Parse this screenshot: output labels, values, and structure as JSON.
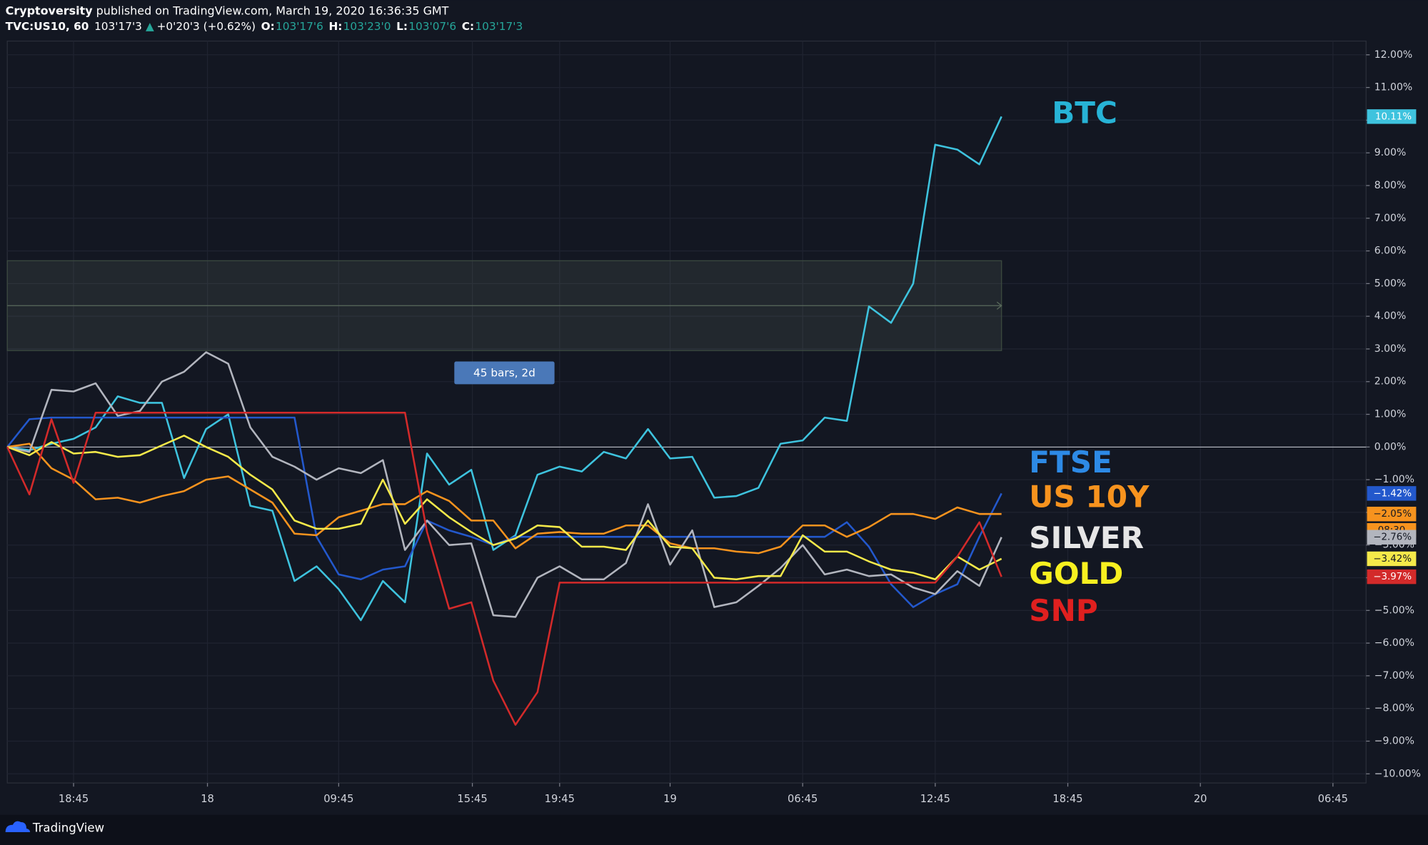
{
  "header": {
    "author": "Cryptoversity",
    "published": "published on TradingView.com, March 19, 2020 16:36:35 GMT",
    "symbol": "TVC:US10, 60",
    "price": "103'17'3",
    "change_arrow": "▲",
    "change": "+0'20'3 (+0.62%)",
    "ohlc": [
      {
        "label": "O:",
        "value": "103'17'6"
      },
      {
        "label": "H:",
        "value": "103'23'0"
      },
      {
        "label": "L:",
        "value": "103'07'6"
      },
      {
        "label": "C:",
        "value": "103'17'3"
      }
    ]
  },
  "footer": {
    "brand": "TradingView"
  },
  "chart_data": {
    "type": "line",
    "x": [
      0,
      1,
      2,
      3,
      4,
      5,
      6,
      7,
      8,
      9,
      10,
      11,
      12,
      13,
      14,
      15,
      16,
      17,
      18,
      19,
      20,
      21,
      22,
      23,
      24,
      25,
      26,
      27,
      28,
      29,
      30,
      31,
      32,
      33,
      34,
      35,
      36,
      37,
      38,
      39,
      40,
      41,
      42,
      43,
      44,
      45
    ],
    "xlim": [
      0,
      61.5
    ],
    "xticks": [
      {
        "value": 3,
        "label": "18:45"
      },
      {
        "value": 9.06,
        "label": "18"
      },
      {
        "value": 15,
        "label": "09:45"
      },
      {
        "value": 21.05,
        "label": "15:45"
      },
      {
        "value": 25,
        "label": "19:45"
      },
      {
        "value": 30,
        "label": "19"
      },
      {
        "value": 36,
        "label": "06:45"
      },
      {
        "value": 42,
        "label": "12:45"
      },
      {
        "value": 48,
        "label": "18:45"
      },
      {
        "value": 54,
        "label": "20"
      },
      {
        "value": 60,
        "label": "06:45"
      }
    ],
    "ylim": [
      -10.28,
      12.42
    ],
    "yticks": [
      {
        "value": 12,
        "label": "12.00%"
      },
      {
        "value": 11,
        "label": "11.00%"
      },
      {
        "value": 10,
        "label": "10.00%"
      },
      {
        "value": 9,
        "label": "9.00%"
      },
      {
        "value": 8,
        "label": "8.00%"
      },
      {
        "value": 7,
        "label": "7.00%"
      },
      {
        "value": 6,
        "label": "6.00%"
      },
      {
        "value": 5,
        "label": "5.00%"
      },
      {
        "value": 4,
        "label": "4.00%"
      },
      {
        "value": 3,
        "label": "3.00%"
      },
      {
        "value": 2,
        "label": "2.00%"
      },
      {
        "value": 1,
        "label": "1.00%"
      },
      {
        "value": 0,
        "label": "0.00%"
      },
      {
        "value": -1,
        "label": "−1.00%"
      },
      {
        "value": -2,
        "label": "−2.00%"
      },
      {
        "value": -3,
        "label": "−3.00%"
      },
      {
        "value": -4,
        "label": "−4.00%"
      },
      {
        "value": -5,
        "label": "−5.00%"
      },
      {
        "value": -6,
        "label": "−6.00%"
      },
      {
        "value": -7,
        "label": "−7.00%"
      },
      {
        "value": -8,
        "label": "−8.00%"
      },
      {
        "value": -9,
        "label": "−9.00%"
      },
      {
        "value": -10,
        "label": "−10.00%"
      }
    ],
    "grid": true,
    "measure": {
      "text": "45 bars, 2d",
      "x_range": [
        0,
        45
      ],
      "y_range": [
        2.95,
        5.7
      ]
    },
    "series": [
      {
        "name": "BTC",
        "color": "#3ec3de",
        "label_color": "#27b3d6",
        "last_label": "10.11%",
        "values": [
          0,
          -0.1,
          0.1,
          0.25,
          0.6,
          1.55,
          1.35,
          1.35,
          -0.95,
          0.55,
          1.0,
          -1.8,
          -1.95,
          -4.1,
          -3.65,
          -4.35,
          -5.3,
          -4.1,
          -4.75,
          -0.2,
          -1.15,
          -0.7,
          -3.15,
          -2.7,
          -0.85,
          -0.6,
          -0.75,
          -0.15,
          -0.35,
          0.55,
          -0.35,
          -0.3,
          -1.55,
          -1.5,
          -1.25,
          0.1,
          0.2,
          0.9,
          0.8,
          4.3,
          3.8,
          5.0,
          9.25,
          9.1,
          8.65,
          10.11
        ]
      },
      {
        "name": "FTSE",
        "color": "#2358cc",
        "label_color": "#2d8ae6",
        "last_label": "−1.42%",
        "values": [
          0,
          0.85,
          0.9,
          0.9,
          0.9,
          0.9,
          0.9,
          0.9,
          0.9,
          0.9,
          0.9,
          0.9,
          0.9,
          0.9,
          -2.75,
          -3.9,
          -4.05,
          -3.75,
          -3.65,
          -2.25,
          -2.55,
          -2.75,
          -3.0,
          -2.75,
          -2.75,
          -2.75,
          -2.75,
          -2.75,
          -2.75,
          -2.75,
          -2.75,
          -2.75,
          -2.75,
          -2.75,
          -2.75,
          -2.75,
          -2.75,
          -2.75,
          -2.3,
          -3.05,
          -4.2,
          -4.9,
          -4.5,
          -4.2,
          -2.75,
          -1.42
        ]
      },
      {
        "name": "US 10Y",
        "color": "#f7931e",
        "label_color": "#f7931e",
        "last_label": "−2.05%",
        "countdown": "08:30",
        "values": [
          0,
          0.1,
          -0.65,
          -1.0,
          -1.6,
          -1.55,
          -1.7,
          -1.5,
          -1.35,
          -1.0,
          -0.9,
          -1.3,
          -1.7,
          -2.65,
          -2.7,
          -2.15,
          -1.95,
          -1.75,
          -1.75,
          -1.35,
          -1.65,
          -2.25,
          -2.25,
          -3.1,
          -2.65,
          -2.6,
          -2.65,
          -2.65,
          -2.4,
          -2.4,
          -2.95,
          -3.1,
          -3.1,
          -3.2,
          -3.25,
          -3.05,
          -2.4,
          -2.4,
          -2.75,
          -2.45,
          -2.05,
          -2.05,
          -2.2,
          -1.85,
          -2.05,
          -2.05
        ]
      },
      {
        "name": "SILVER",
        "color": "#b2b5be",
        "label_color": "#e6e6e6",
        "last_label": "−2.76%",
        "values": [
          0,
          -0.15,
          1.75,
          1.7,
          1.95,
          0.95,
          1.1,
          2.0,
          2.3,
          2.9,
          2.55,
          0.6,
          -0.3,
          -0.6,
          -1.0,
          -0.65,
          -0.8,
          -0.4,
          -3.15,
          -2.25,
          -3.0,
          -2.95,
          -5.15,
          -5.2,
          -4.0,
          -3.65,
          -4.05,
          -4.05,
          -3.55,
          -1.75,
          -3.6,
          -2.55,
          -4.9,
          -4.75,
          -4.25,
          -3.7,
          -3.0,
          -3.9,
          -3.75,
          -3.95,
          -3.9,
          -4.3,
          -4.5,
          -3.8,
          -4.25,
          -2.76
        ]
      },
      {
        "name": "GOLD",
        "color": "#f5e94a",
        "label_color": "#f8f020",
        "last_label": "−3.42%",
        "values": [
          0,
          -0.25,
          0.15,
          -0.2,
          -0.15,
          -0.3,
          -0.25,
          0.05,
          0.35,
          0,
          -0.3,
          -0.85,
          -1.3,
          -2.25,
          -2.5,
          -2.5,
          -2.35,
          -1.0,
          -2.35,
          -1.6,
          -2.15,
          -2.6,
          -3.0,
          -2.8,
          -2.4,
          -2.45,
          -3.05,
          -3.05,
          -3.15,
          -2.25,
          -3.05,
          -3.1,
          -4.0,
          -4.05,
          -3.95,
          -3.95,
          -2.7,
          -3.2,
          -3.2,
          -3.5,
          -3.75,
          -3.85,
          -4.05,
          -3.35,
          -3.75,
          -3.42
        ]
      },
      {
        "name": "SNP",
        "color": "#d32a2a",
        "label_color": "#e0201f",
        "last_label": "−3.97%",
        "values": [
          0,
          -1.45,
          0.85,
          -1.1,
          1.05,
          1.05,
          1.05,
          1.05,
          1.05,
          1.05,
          1.05,
          1.05,
          1.05,
          1.05,
          1.05,
          1.05,
          1.05,
          1.05,
          1.05,
          -2.6,
          -4.95,
          -4.75,
          -7.15,
          -8.5,
          -7.5,
          -4.15,
          -4.15,
          -4.15,
          -4.15,
          -4.15,
          -4.15,
          -4.15,
          -4.15,
          -4.15,
          -4.15,
          -4.15,
          -4.15,
          -4.15,
          -4.15,
          -4.15,
          -4.15,
          -4.15,
          -4.15,
          -3.35,
          -2.3,
          -3.97
        ]
      }
    ]
  }
}
